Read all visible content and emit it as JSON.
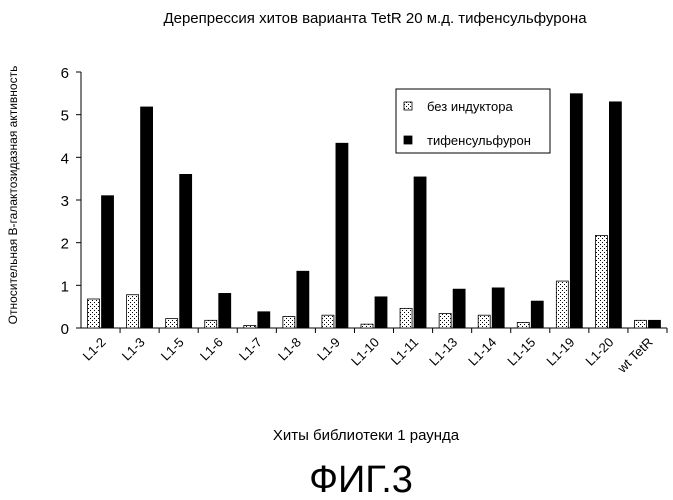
{
  "chart_data": {
    "type": "bar",
    "title": "Дерепрессия хитов варианта TetR 20 м.д. тифенсульфурона",
    "xlabel": "Хиты библиотеки 1 раунда",
    "ylabel": "Относительная B-галактозидазная активность",
    "ylim": [
      0,
      6
    ],
    "yticks": [
      0,
      1,
      2,
      3,
      4,
      5,
      6
    ],
    "grid": false,
    "legend_position": "top-right",
    "categories": [
      "L1-2",
      "L1-3",
      "L1-5",
      "L1-6",
      "L1-7",
      "L1-8",
      "L1-9",
      "L1-10",
      "L1-11",
      "L1-13",
      "L1-14",
      "L1-15",
      "L1-19",
      "L1-20",
      "wt TetR"
    ],
    "series": [
      {
        "name": "без индуктора",
        "pattern": "dotted",
        "color": "#ffffff",
        "values": [
          0.68,
          0.78,
          0.22,
          0.18,
          0.06,
          0.27,
          0.3,
          0.09,
          0.46,
          0.34,
          0.3,
          0.13,
          1.1,
          2.17,
          0.18
        ]
      },
      {
        "name": "тифенсульфурон",
        "pattern": "solid",
        "color": "#000000",
        "values": [
          3.1,
          5.18,
          3.6,
          0.81,
          0.38,
          1.33,
          4.33,
          0.73,
          3.54,
          0.91,
          0.94,
          0.63,
          5.49,
          5.3,
          0.18
        ]
      }
    ]
  },
  "caption": "ФИГ.3"
}
